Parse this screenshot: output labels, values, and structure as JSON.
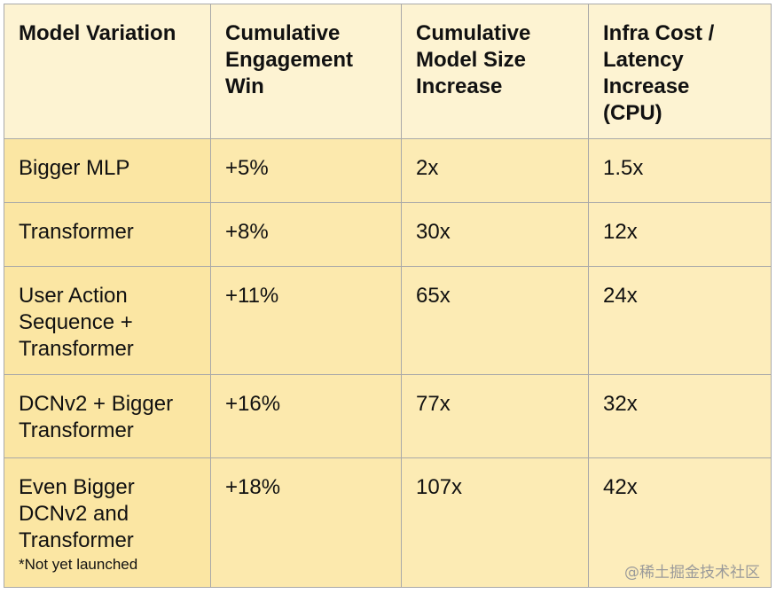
{
  "table": {
    "headers": [
      "Model Variation",
      "Cumulative\nEngagement\nWin",
      "Cumulative\nModel Size\nIncrease",
      "Infra Cost /\nLatency\nIncrease\n(CPU)"
    ],
    "rows": [
      [
        "Bigger MLP",
        "+5%",
        "2x",
        "1.5x"
      ],
      [
        "Transformer",
        "+8%",
        "30x",
        "12x"
      ],
      [
        "User Action\nSequence +\nTransformer",
        "+11%",
        "65x",
        "24x"
      ],
      [
        "DCNv2 + Bigger\nTransformer",
        "+16%",
        "77x",
        "32x"
      ],
      [
        "Even Bigger\nDCNv2 and\nTransformer",
        "+18%",
        "107x",
        "42x"
      ]
    ],
    "footnote": "*Not yet launched"
  },
  "watermark": "@稀土掘金技术社区"
}
